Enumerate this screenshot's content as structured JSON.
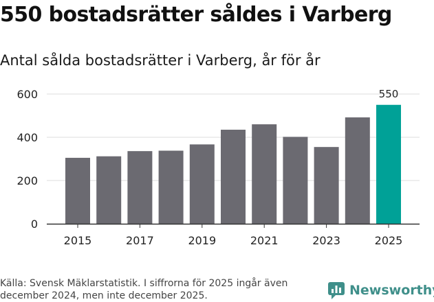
{
  "title": "550 bostadsrätter såldes i Varberg",
  "subtitle": "Antal sålda bostadsrätter i Varberg, år för år",
  "source": "Källa: Svensk Mäklarstatistik. I siffrorna för 2025 ingår även december 2024, men inte december 2025.",
  "brand": "Newsworthy",
  "colors": {
    "bar": "#6b6a71",
    "highlight": "#00a197",
    "grid": "#dddddd",
    "brand": "#3f8f8a"
  },
  "chart_data": {
    "type": "bar",
    "title": "Antal sålda bostadsrätter i Varberg, år för år",
    "xlabel": "",
    "ylabel": "",
    "categories": [
      "2015",
      "2016",
      "2017",
      "2018",
      "2019",
      "2020",
      "2021",
      "2022",
      "2023",
      "2024",
      "2025"
    ],
    "values": [
      305,
      312,
      336,
      338,
      367,
      435,
      460,
      402,
      355,
      492,
      550
    ],
    "highlight_index": 10,
    "data_labels": {
      "10": "550"
    },
    "x_tick_labels": [
      "2015",
      "",
      "2017",
      "",
      "2019",
      "",
      "2021",
      "",
      "2023",
      "",
      "2025"
    ],
    "yticks": [
      0,
      200,
      400,
      600
    ],
    "ylim": [
      0,
      600
    ],
    "grid": true
  }
}
